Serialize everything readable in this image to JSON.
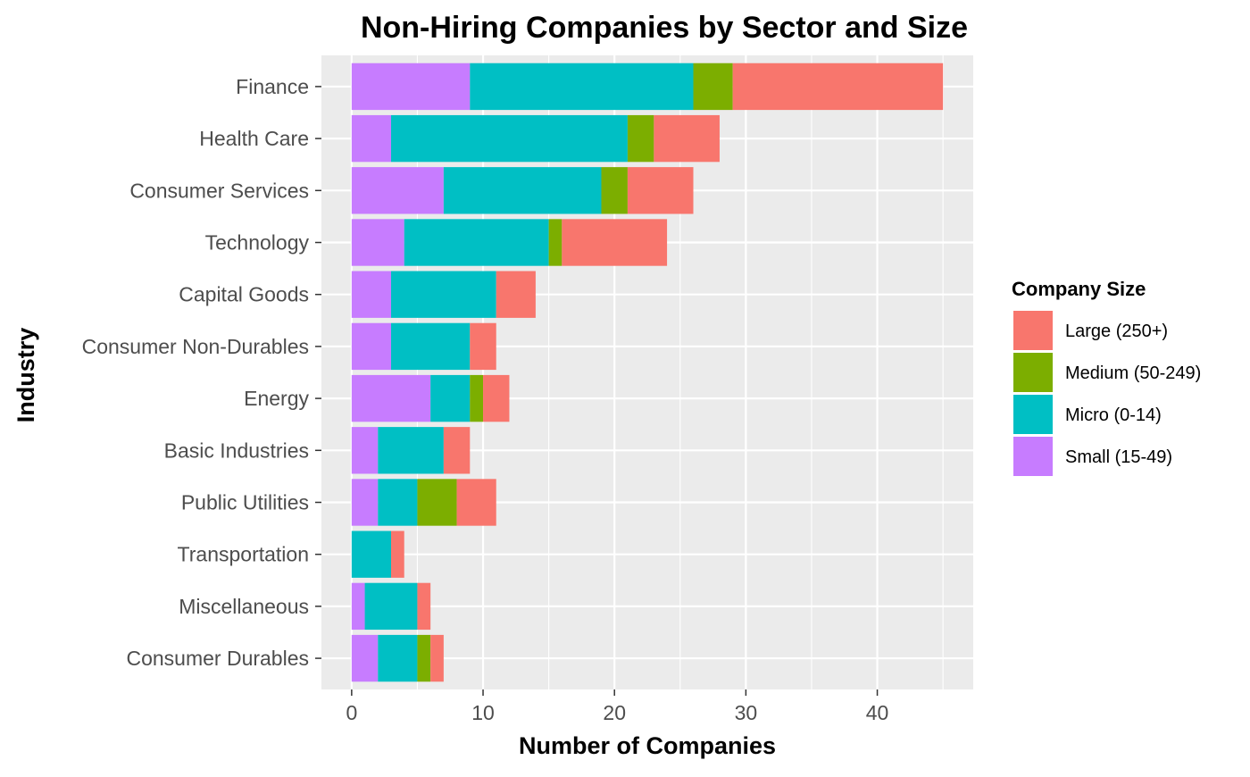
{
  "chart_data": {
    "type": "bar",
    "orientation": "horizontal",
    "stacked": true,
    "title": "Non-Hiring Companies by Sector and Size",
    "xlabel": "Number of Companies",
    "ylabel": "Industry",
    "xlim": [
      -2.3,
      47.3
    ],
    "xticks": [
      0,
      10,
      20,
      30,
      40
    ],
    "grid": true,
    "legend_position": "right",
    "legend_title": "Company Size",
    "categories": [
      "Finance",
      "Health Care",
      "Consumer Services",
      "Technology",
      "Capital Goods",
      "Consumer Non-Durables",
      "Energy",
      "Basic Industries",
      "Public Utilities",
      "Transportation",
      "Miscellaneous",
      "Consumer Durables"
    ],
    "stack_order": [
      "Small (15-49)",
      "Micro (0-14)",
      "Medium (50-249)",
      "Large (250+)"
    ],
    "series": [
      {
        "name": "Large (250+)",
        "color": "#F8766D",
        "values": [
          16,
          5,
          5,
          8,
          3,
          2,
          2,
          2,
          3,
          1,
          1,
          1
        ]
      },
      {
        "name": "Medium (50-249)",
        "color": "#7CAE00",
        "values": [
          3,
          2,
          2,
          1,
          0,
          0,
          1,
          0,
          3,
          0,
          0,
          1
        ]
      },
      {
        "name": "Micro (0-14)",
        "color": "#00BFC4",
        "values": [
          17,
          18,
          12,
          11,
          8,
          6,
          3,
          5,
          3,
          3,
          4,
          3
        ]
      },
      {
        "name": "Small (15-49)",
        "color": "#C77CFF",
        "values": [
          9,
          3,
          7,
          4,
          3,
          3,
          6,
          2,
          2,
          0,
          1,
          2
        ]
      }
    ]
  }
}
